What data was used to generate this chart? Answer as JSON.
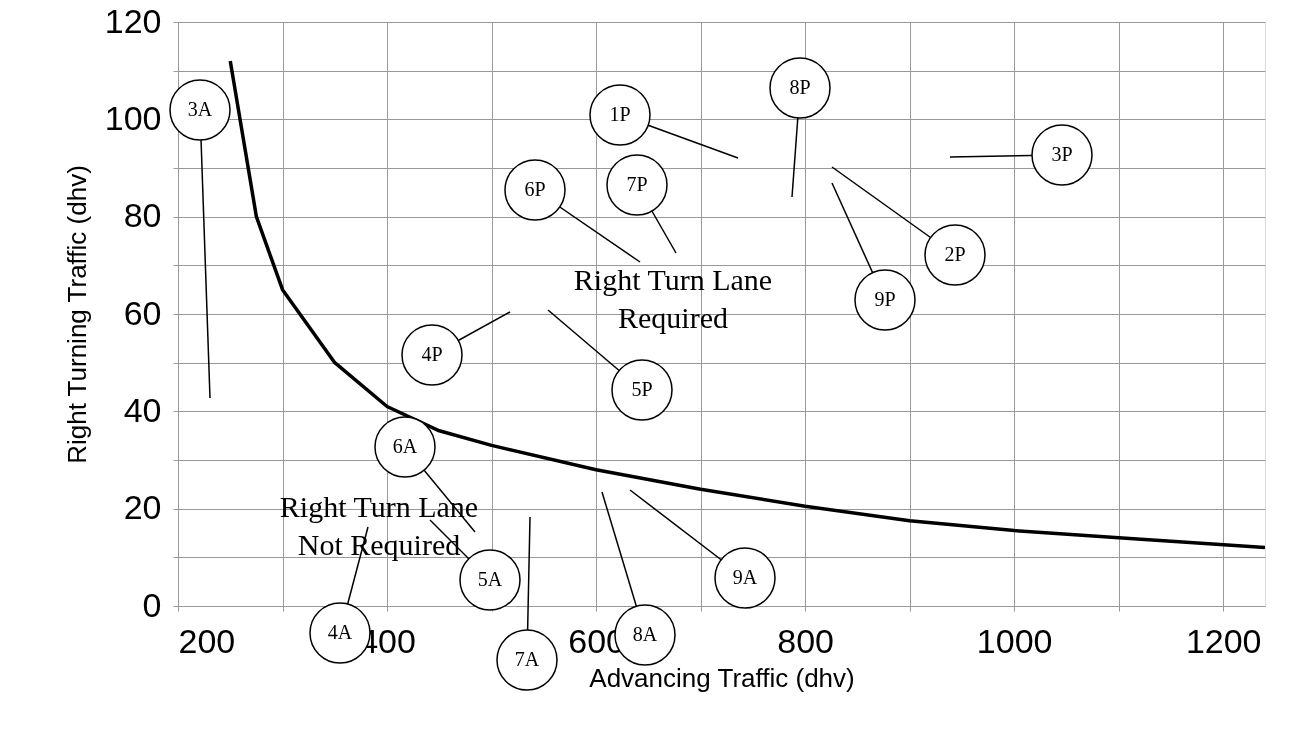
{
  "chart_data": {
    "type": "line",
    "xlabel": "Advancing Traffic (dhv)",
    "ylabel": "Right Turning Traffic (dhv)",
    "x": [
      250,
      275,
      300,
      350,
      400,
      450,
      500,
      600,
      700,
      800,
      900,
      1000,
      1100,
      1240
    ],
    "series": [
      {
        "color": "#000000",
        "values": [
          112,
          80,
          65,
          50,
          41,
          36,
          33,
          28,
          24,
          20.5,
          17.5,
          15.5,
          14,
          12
        ]
      }
    ],
    "xlim": [
      200,
      1240
    ],
    "xticks": [
      200,
      {
        "value": 300,
        "label": null
      },
      400,
      {
        "value": 500,
        "label": null
      },
      600,
      {
        "value": 700,
        "label": null
      },
      800,
      {
        "value": 900,
        "label": null
      },
      1000,
      {
        "value": 1100,
        "label": null
      },
      1200
    ],
    "ylim": [
      0,
      120
    ],
    "yticks": [
      0,
      {
        "value": 10,
        "label": null
      },
      20,
      {
        "value": 30,
        "label": null
      },
      40,
      {
        "value": 50,
        "label": null
      },
      60,
      {
        "value": 70,
        "label": null
      },
      80,
      {
        "value": 90,
        "label": null
      },
      100,
      {
        "value": 110,
        "label": null
      },
      120
    ],
    "grid": true,
    "annotations": [
      "Right Turn Lane Required",
      "Right Turn Lane Not Required",
      "3A",
      "1P",
      "8P",
      "3P",
      "2P",
      "9P",
      "6P",
      "7P",
      "4P",
      "5P",
      "6A",
      "5A",
      "4A",
      "7A",
      "8A",
      "9A"
    ]
  }
}
